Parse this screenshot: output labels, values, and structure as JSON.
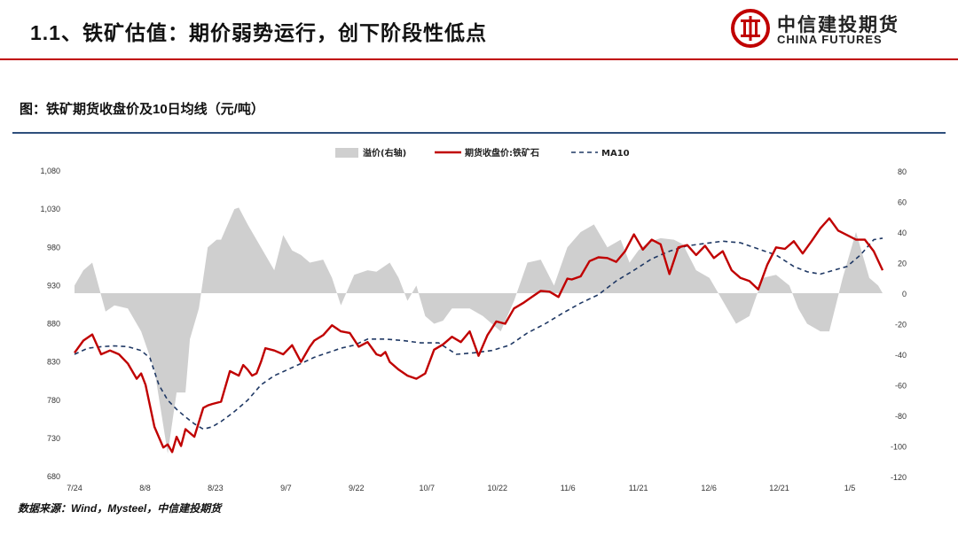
{
  "header": {
    "title": "1.1、铁矿估值：期价弱势运行，创下阶段性低点",
    "logo_cn": "中信建投期货",
    "logo_en": "CHINA FUTURES",
    "accent_color": "#c00000"
  },
  "figure": {
    "title": "图：铁矿期货收盘价及10日均线（元/吨）",
    "source": "数据来源：Wind，Mysteel，中信建投期货"
  },
  "chart_data": {
    "type": "line",
    "x_labels": [
      "7/24",
      "8/8",
      "8/23",
      "9/7",
      "9/22",
      "10/7",
      "10/22",
      "11/6",
      "11/21",
      "12/6",
      "12/21",
      "1/5"
    ],
    "x_range": [
      0,
      182
    ],
    "y_left": {
      "ticks": [
        "1,080",
        "1,030",
        "980",
        "930",
        "880",
        "830",
        "780",
        "730",
        "680"
      ],
      "range": [
        680,
        1080
      ]
    },
    "y_right": {
      "ticks": [
        "80",
        "60",
        "40",
        "20",
        "0",
        "-20",
        "-40",
        "-60",
        "-80",
        "-100",
        "-120"
      ],
      "range": [
        -120,
        80
      ]
    },
    "series": [
      {
        "name": "溢价(右轴)",
        "type": "area",
        "axis": "right",
        "color": "#cfcfcf",
        "x": [
          0,
          2,
          4,
          7,
          9,
          12,
          15,
          18,
          21,
          23,
          25,
          26,
          28,
          30,
          32,
          33,
          36,
          37,
          39,
          41,
          43,
          45,
          47,
          49,
          51,
          53,
          56,
          58,
          60,
          63,
          66,
          68,
          71,
          73,
          75,
          77,
          79,
          81,
          83,
          85,
          87,
          89,
          92,
          94,
          96,
          99,
          102,
          105,
          108,
          111,
          114,
          117,
          120,
          123,
          125,
          127,
          129,
          132,
          135,
          137,
          140,
          143,
          146,
          149,
          152,
          155,
          158,
          161,
          163,
          165,
          168,
          170,
          173,
          176,
          179,
          181,
          182
        ],
        "values": [
          5,
          15,
          20,
          -12,
          -8,
          -10,
          -25,
          -50,
          -105,
          -65,
          -65,
          -30,
          -10,
          30,
          35,
          35,
          55,
          56,
          45,
          35,
          25,
          15,
          38,
          28,
          25,
          20,
          22,
          10,
          -8,
          12,
          15,
          14,
          20,
          10,
          -5,
          5,
          -15,
          -20,
          -18,
          -10,
          -10,
          -10,
          -15,
          -20,
          -25,
          -5,
          20,
          22,
          5,
          30,
          40,
          45,
          30,
          35,
          20,
          28,
          33,
          36,
          35,
          32,
          15,
          10,
          -5,
          -20,
          -15,
          10,
          12,
          5,
          -10,
          -20,
          -25,
          -25,
          10,
          40,
          10,
          5,
          0
        ]
      },
      {
        "name": "期货收盘价:铁矿石",
        "type": "line",
        "axis": "left",
        "color": "#c00000",
        "x": [
          0,
          2,
          4,
          6,
          8,
          10,
          12,
          14,
          15,
          16,
          18,
          20,
          21,
          22,
          23,
          24,
          25,
          27,
          29,
          30,
          31,
          33,
          35,
          37,
          38,
          39,
          40,
          41,
          42,
          43,
          45,
          47,
          49,
          51,
          53,
          54,
          56,
          58,
          60,
          62,
          64,
          66,
          68,
          69,
          70,
          71,
          73,
          75,
          77,
          79,
          81,
          83,
          85,
          87,
          89,
          91,
          93,
          95,
          97,
          99,
          101,
          103,
          105,
          107,
          109,
          111,
          112,
          114,
          116,
          118,
          120,
          122,
          124,
          126,
          128,
          130,
          132,
          134,
          136,
          138,
          140,
          142,
          144,
          146,
          148,
          150,
          152,
          154,
          156,
          158,
          160,
          162,
          164,
          166,
          168,
          170,
          172,
          174,
          176,
          178,
          180,
          182
        ],
        "values": [
          842,
          858,
          866,
          840,
          845,
          840,
          828,
          808,
          815,
          800,
          745,
          718,
          722,
          712,
          732,
          720,
          742,
          732,
          770,
          773,
          775,
          778,
          818,
          812,
          826,
          820,
          812,
          815,
          830,
          848,
          845,
          840,
          852,
          830,
          850,
          858,
          865,
          878,
          870,
          868,
          850,
          856,
          840,
          838,
          843,
          830,
          820,
          812,
          808,
          815,
          846,
          853,
          863,
          856,
          870,
          838,
          865,
          883,
          880,
          900,
          907,
          915,
          923,
          922,
          915,
          939,
          938,
          942,
          962,
          967,
          966,
          961,
          975,
          997,
          977,
          990,
          984,
          945,
          980,
          983,
          970,
          982,
          966,
          975,
          950,
          940,
          936,
          925,
          957,
          980,
          978,
          988,
          972,
          988,
          1005,
          1018,
          1002,
          996,
          990,
          990,
          975,
          950
        ]
      },
      {
        "name": "MA10",
        "type": "dashed",
        "axis": "left",
        "color": "#1f3864",
        "x": [
          0,
          3,
          6,
          9,
          12,
          15,
          17,
          19,
          21,
          23,
          25,
          27,
          29,
          31,
          33,
          36,
          39,
          42,
          45,
          48,
          51,
          54,
          57,
          60,
          63,
          66,
          70,
          74,
          78,
          82,
          86,
          90,
          94,
          98,
          102,
          106,
          110,
          114,
          118,
          122,
          126,
          130,
          134,
          138,
          142,
          146,
          150,
          154,
          158,
          162,
          165,
          168,
          171,
          174,
          177,
          180,
          182
        ],
        "values": [
          840,
          848,
          850,
          851,
          850,
          845,
          835,
          800,
          780,
          768,
          758,
          749,
          742,
          745,
          752,
          765,
          780,
          800,
          812,
          820,
          828,
          836,
          842,
          848,
          852,
          860,
          860,
          858,
          855,
          855,
          840,
          842,
          845,
          852,
          868,
          880,
          894,
          907,
          918,
          936,
          950,
          965,
          975,
          982,
          985,
          988,
          986,
          978,
          970,
          955,
          948,
          945,
          950,
          955,
          970,
          990,
          992
        ]
      }
    ]
  }
}
